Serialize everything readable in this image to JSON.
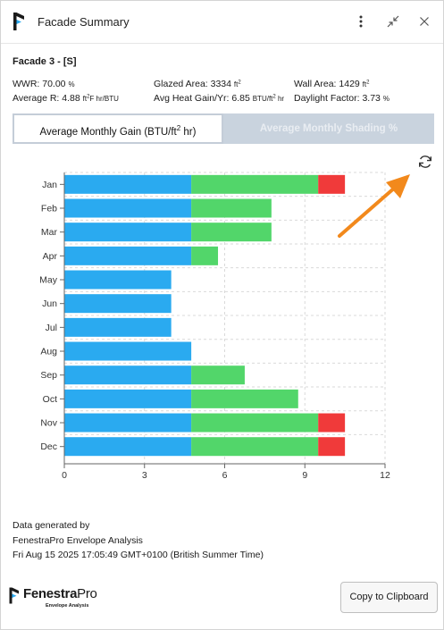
{
  "window": {
    "title": "Facade Summary"
  },
  "facade": {
    "name": "Facade 3 - [S]"
  },
  "stats": {
    "wwr_label": "WWR:",
    "wwr_value": "70.00",
    "wwr_unit": "%",
    "glazed_label": "Glazed Area:",
    "glazed_value": "3334",
    "area_unit": "ft",
    "area_unit_sup": "2",
    "wall_label": "Wall Area:",
    "wall_value": "1429",
    "avg_r_label": "Average R:",
    "avg_r_value": "4.88",
    "avg_r_unit_a": "ft",
    "avg_r_unit_sup": "2",
    "avg_r_unit_b": "F hr/BTU",
    "heat_label": "Avg Heat Gain/Yr:",
    "heat_value": "6.85",
    "heat_unit_a": "BTU/ft",
    "heat_unit_sup": "2",
    "heat_unit_b": " hr",
    "daylight_label": "Daylight Factor:",
    "daylight_value": "3.73",
    "daylight_unit": "%"
  },
  "tabs": {
    "gain_label": "Average Monthly Gain (BTU/ft",
    "gain_sup": "2",
    "gain_label_end": " hr)",
    "shading_label": "Average Monthly Shading %"
  },
  "icons": {
    "app": "fenestrapro-logo-icon",
    "more": "more-vertical-icon",
    "minimize": "collapse-icon",
    "close": "close-icon",
    "refresh": "refresh-icon",
    "annotation": "orange-arrow-annotation"
  },
  "chart_data": {
    "type": "bar",
    "orientation": "horizontal",
    "stacked": true,
    "categories": [
      "Jan",
      "Feb",
      "Mar",
      "Apr",
      "May",
      "Jun",
      "Jul",
      "Aug",
      "Sep",
      "Oct",
      "Nov",
      "Dec"
    ],
    "series": [
      {
        "color": "#2aaaf0",
        "values": [
          4.75,
          4.75,
          4.75,
          4.75,
          4.0,
          4.0,
          4.0,
          4.75,
          4.75,
          4.75,
          4.75,
          4.75
        ]
      },
      {
        "color": "#52d66a",
        "values": [
          4.75,
          3.0,
          3.0,
          1.0,
          0,
          0,
          0,
          0,
          2.0,
          4.0,
          4.75,
          4.75
        ]
      },
      {
        "color": "#f03a3a",
        "values": [
          1.0,
          0,
          0,
          0,
          0,
          0,
          0,
          0,
          0,
          0,
          1.0,
          1.0
        ]
      }
    ],
    "xlim": [
      0,
      12
    ],
    "xticks": [
      "0",
      "3",
      "6",
      "9",
      "12"
    ],
    "grid": true,
    "title": "",
    "xlabel": "",
    "ylabel": ""
  },
  "footer": {
    "line1": "Data generated by",
    "line2": "FenestraPro Envelope Analysis",
    "line3": "Fri Aug 15 2025 17:05:49 GMT+0100 (British Summer Time)"
  },
  "brand": {
    "name_a": "Fenestra",
    "name_b": "Pro",
    "sub": "Envelope Analysis"
  },
  "actions": {
    "copy_label": "Copy to Clipboard"
  }
}
